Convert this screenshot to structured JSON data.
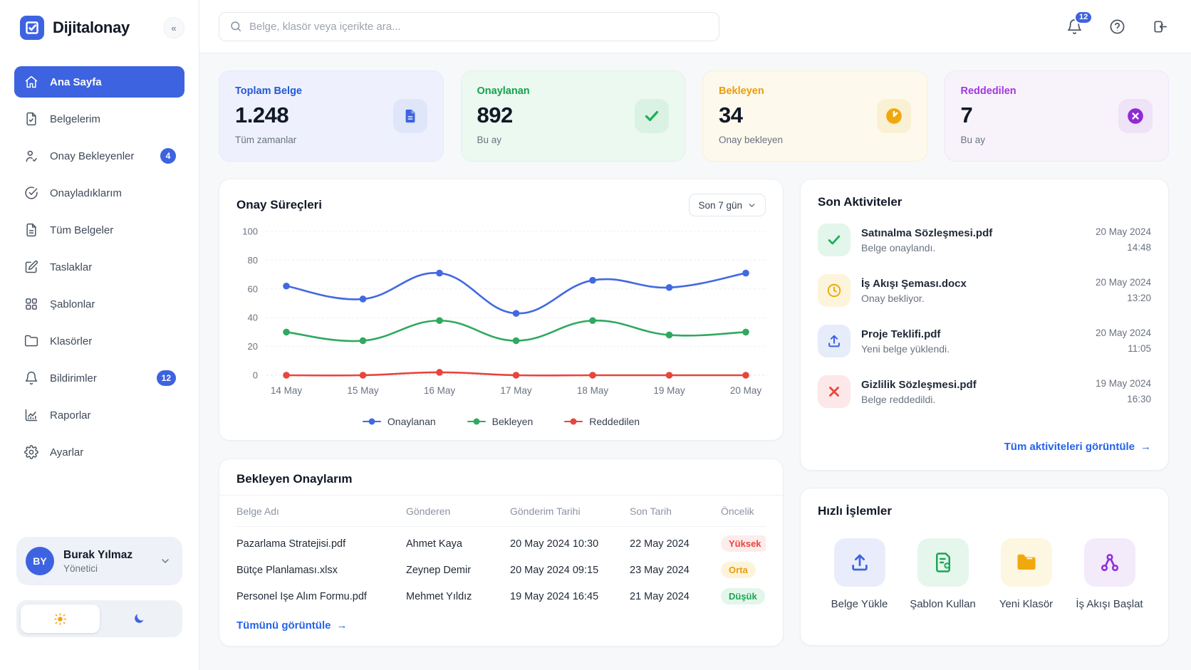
{
  "palette": {
    "brand": "#3d63e0",
    "link": "#2563eb",
    "bg": "#f7f8fa",
    "border": "#e9ecf0",
    "text": "#111827",
    "muted": "#6b7280",
    "blue": "#2457d7",
    "green": "#17a04d",
    "amber": "#ec9d0b",
    "purple": "#a136e0",
    "blue-bg": "#eef1fd",
    "green-bg": "#ecf9f1",
    "amber-bg": "#fdf9ec",
    "purple-bg": "#f8f3fb"
  },
  "sidebar": {
    "logo_text": "Dijitalonay",
    "items": [
      {
        "label": "Ana Sayfa",
        "icon": "home",
        "active": true
      },
      {
        "label": "Belgelerim",
        "icon": "file"
      },
      {
        "label": "Onay Bekleyenler",
        "icon": "user-check",
        "badge": "4"
      },
      {
        "label": "Onayladıklarım",
        "icon": "check-circle"
      },
      {
        "label": "Tüm Belgeler",
        "icon": "file-text"
      },
      {
        "label": "Taslaklar",
        "icon": "edit-square"
      },
      {
        "label": "Şablonlar",
        "icon": "layout-grid"
      },
      {
        "label": "Klasörler",
        "icon": "folder"
      },
      {
        "label": "Bildirimler",
        "icon": "bell",
        "badge": "12"
      },
      {
        "label": "Raporlar",
        "icon": "chart-line"
      },
      {
        "label": "Ayarlar",
        "icon": "settings"
      }
    ],
    "user": {
      "initials": "BY",
      "name": "Burak Yılmaz",
      "role": "Yönetici"
    }
  },
  "topbar": {
    "search_placeholder": "Belge, klasör veya içerikte ara...",
    "notifications_badge": "12"
  },
  "stats": [
    {
      "title": "Toplam Belge",
      "value": "1.248",
      "subtitle": "Tüm zamanlar",
      "icon": "document",
      "accent": "blue"
    },
    {
      "title": "Onaylanan",
      "value": "892",
      "subtitle": "Bu ay",
      "icon": "check",
      "accent": "green"
    },
    {
      "title": "Bekleyen",
      "value": "34",
      "subtitle": "Onay bekleyen",
      "icon": "clock-filled",
      "accent": "amber"
    },
    {
      "title": "Reddedilen",
      "value": "7",
      "subtitle": "Bu ay",
      "icon": "x-circle-filled",
      "accent": "purple"
    }
  ],
  "chart_card": {
    "title": "Onay Süreçleri",
    "range_label": "Son 7 gün"
  },
  "chart_data": {
    "type": "line",
    "title": "Onay Süreçleri",
    "x": [
      "14 May",
      "15 May",
      "16 May",
      "17 May",
      "18 May",
      "19 May",
      "20 May"
    ],
    "series": [
      {
        "name": "Onaylanan",
        "color": "#4169e1",
        "values": [
          62,
          53,
          71,
          43,
          66,
          61,
          71
        ]
      },
      {
        "name": "Bekleyen",
        "color": "#2fa95f",
        "values": [
          30,
          24,
          38,
          24,
          38,
          28,
          30
        ]
      },
      {
        "name": "Reddedilen",
        "color": "#e8453c",
        "values": [
          0,
          0,
          2,
          0,
          0,
          0,
          0
        ]
      }
    ],
    "ylim": [
      0,
      100
    ],
    "yticks": [
      0,
      20,
      40,
      60,
      80,
      100
    ],
    "grid": "horizontal",
    "legend_position": "bottom",
    "curve": "smooth"
  },
  "activities": {
    "title": "Son Aktiviteler",
    "items": [
      {
        "file": "Satınalma Sözleşmesi.pdf",
        "action": "Belge onaylandı.",
        "date": "20 May 2024",
        "time": "14:48",
        "icon": "check",
        "accent": "green"
      },
      {
        "file": "İş Akışı Şeması.docx",
        "action": "Onay bekliyor.",
        "date": "20 May 2024",
        "time": "13:20",
        "icon": "clock",
        "accent": "amber"
      },
      {
        "file": "Proje Teklifi.pdf",
        "action": "Yeni belge yüklendi.",
        "date": "20 May 2024",
        "time": "11:05",
        "icon": "upload",
        "accent": "blue"
      },
      {
        "file": "Gizlilik Sözleşmesi.pdf",
        "action": "Belge reddedildi.",
        "date": "19 May 2024",
        "time": "16:30",
        "icon": "x",
        "accent": "red"
      }
    ],
    "link": "Tüm aktiviteleri görüntüle",
    "link_arrow": "→"
  },
  "approvals": {
    "title": "Bekleyen Onaylarım",
    "columns": [
      "Belge Adı",
      "Gönderen",
      "Gönderim Tarihi",
      "Son Tarih",
      "Öncelik"
    ],
    "rows": [
      {
        "name": "Pazarlama Stratejisi.pdf",
        "sender": "Ahmet Kaya",
        "sent": "20 May 2024 10:30",
        "due": "22 May 2024",
        "priority": "Yüksek",
        "priority_level": "high"
      },
      {
        "name": "Bütçe Planlaması.xlsx",
        "sender": "Zeynep Demir",
        "sent": "20 May 2024 09:15",
        "due": "23 May 2024",
        "priority": "Orta",
        "priority_level": "medium"
      },
      {
        "name": "Personel İşe Alım Formu.pdf",
        "sender": "Mehmet Yıldız",
        "sent": "19 May 2024 16:45",
        "due": "21 May 2024",
        "priority": "Düşük",
        "priority_level": "low"
      }
    ],
    "link": "Tümünü görüntüle",
    "link_arrow": "→"
  },
  "quick_actions": {
    "title": "Hızlı İşlemler",
    "items": [
      {
        "label": "Belge Yükle",
        "icon": "upload",
        "accent": "blue"
      },
      {
        "label": "Şablon Kullan",
        "icon": "template",
        "accent": "green"
      },
      {
        "label": "Yeni Klasör",
        "icon": "folder",
        "accent": "amber"
      },
      {
        "label": "İş Akışı Başlat",
        "icon": "workflow",
        "accent": "purple"
      }
    ]
  }
}
